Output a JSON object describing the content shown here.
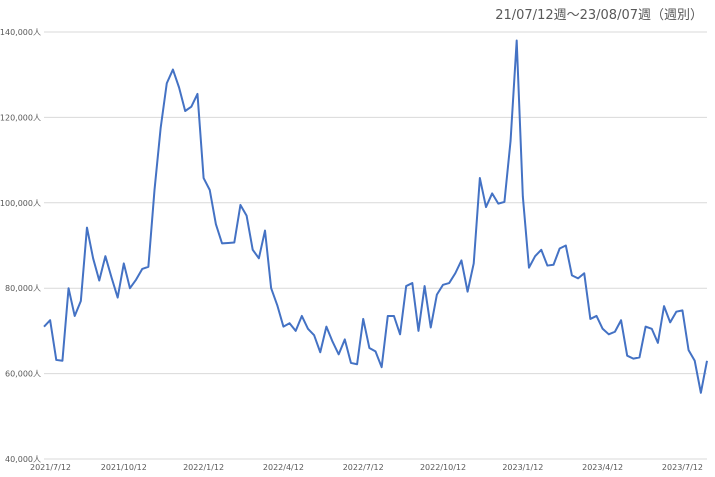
{
  "chart_data": {
    "type": "line",
    "title": "21/07/12週〜23/08/07週（週別）",
    "xlabel": "",
    "ylabel": "",
    "ylim": [
      40000,
      140000
    ],
    "y_ticks": [
      {
        "value": 40000,
        "label": "40,000人"
      },
      {
        "value": 60000,
        "label": "60,000人"
      },
      {
        "value": 80000,
        "label": "80,000人"
      },
      {
        "value": 100000,
        "label": "100,000人"
      },
      {
        "value": 120000,
        "label": "120,000人"
      },
      {
        "value": 140000,
        "label": "140,000人"
      }
    ],
    "x_ticks": [
      {
        "index": 0,
        "label": "2021/7/12"
      },
      {
        "index": 13,
        "label": "2021/10/12"
      },
      {
        "index": 26,
        "label": "2022/1/12"
      },
      {
        "index": 39,
        "label": "2022/4/12"
      },
      {
        "index": 52,
        "label": "2022/7/12"
      },
      {
        "index": 65,
        "label": "2022/10/12"
      },
      {
        "index": 78,
        "label": "2023/1/12"
      },
      {
        "index": 91,
        "label": "2023/4/12"
      },
      {
        "index": 104,
        "label": "2023/7/12"
      }
    ],
    "grid": true,
    "series": [
      {
        "color": "#4472c4",
        "values": [
          71000,
          72500,
          63200,
          63000,
          80000,
          73500,
          77000,
          94200,
          87000,
          81800,
          87500,
          82500,
          77800,
          85800,
          80000,
          82000,
          84500,
          85000,
          103000,
          117500,
          128000,
          131200,
          127000,
          121500,
          122500,
          125500,
          105800,
          103000,
          95000,
          90500,
          90600,
          90700,
          99500,
          97000,
          89000,
          87000,
          93500,
          80000,
          76000,
          71000,
          71800,
          70000,
          73500,
          70500,
          69000,
          65000,
          71000,
          67500,
          64500,
          68000,
          62500,
          62200,
          72800,
          66000,
          65200,
          61500,
          73500,
          73500,
          69200,
          80500,
          81200,
          70000,
          80500,
          70800,
          78500,
          80800,
          81200,
          83500,
          86500,
          79200,
          85800,
          105800,
          99000,
          102200,
          99800,
          100200,
          114500,
          138000,
          101500,
          84800,
          87500,
          89000,
          85300,
          85500,
          89300,
          90000,
          83000,
          82300,
          83500,
          72800,
          73500,
          70500,
          69200,
          69800,
          72500,
          64200,
          63500,
          63800,
          71000,
          70500,
          67200,
          75800,
          72000,
          74500,
          74800,
          65500,
          63000,
          55500,
          63000
        ]
      }
    ]
  }
}
